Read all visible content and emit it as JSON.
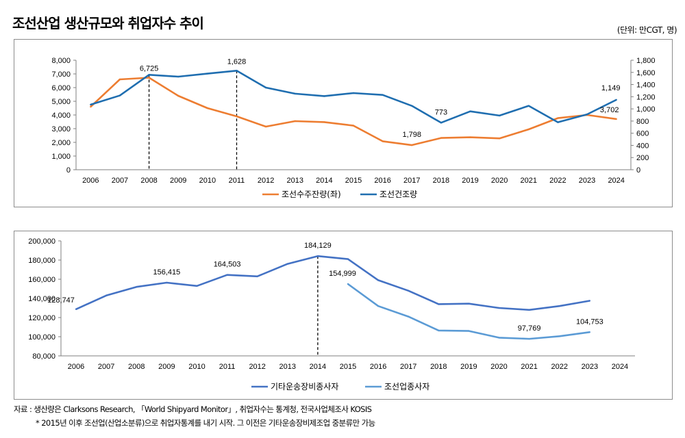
{
  "header": {
    "title": "조선산업 생산규모와 취업자수 추이",
    "unit": "(단위: 만CGT, 명)"
  },
  "footer": {
    "source": "자료 : 생산량은 Clarksons Research, 「World Shipyard Monitor」, 취업자수는 통계청, 전국사업체조사 KOSIS",
    "note": "* 2015년 이후 조선업(산업소분류)으로 취업자통계를 내기 시작. 그 이전은 기타운송장비제조업 중분류만 가능"
  },
  "chart_data": [
    {
      "type": "line",
      "categories": [
        "2006",
        "2007",
        "2008",
        "2009",
        "2010",
        "2011",
        "2012",
        "2013",
        "2014",
        "2015",
        "2016",
        "2017",
        "2018",
        "2019",
        "2020",
        "2021",
        "2022",
        "2023",
        "2024"
      ],
      "yticks": [
        "0",
        "1,000",
        "2,000",
        "3,000",
        "4,000",
        "5,000",
        "6,000",
        "7,000",
        "8,000"
      ],
      "y2ticks": [
        "0",
        "200",
        "400",
        "600",
        "800",
        "1,000",
        "1,200",
        "1,400",
        "1,600",
        "1,800"
      ],
      "ylim": [
        0,
        8000
      ],
      "y2lim": [
        0,
        1800
      ],
      "legend_position": "bottom",
      "series": [
        {
          "name": "조선수주잔량(좌)",
          "axis": "left",
          "color": "#ed7d31",
          "values": [
            4600,
            6600,
            6725,
            5400,
            4500,
            3900,
            3150,
            3550,
            3480,
            3220,
            2080,
            1798,
            2320,
            2370,
            2290,
            2950,
            3770,
            4000,
            3702
          ]
        },
        {
          "name": "조선건조량",
          "axis": "right",
          "color": "#1f6eb0",
          "values": [
            1070,
            1220,
            1560,
            1530,
            1580,
            1628,
            1350,
            1250,
            1210,
            1260,
            1230,
            1050,
            773,
            960,
            890,
            1050,
            780,
            910,
            1149
          ]
        }
      ],
      "labels": [
        {
          "text": "6,725",
          "category": "2008"
        },
        {
          "text": "1,628",
          "category": "2011"
        },
        {
          "text": "773",
          "category": "2018"
        },
        {
          "text": "1,798",
          "category": "2017"
        },
        {
          "text": "1,149",
          "category": "2024"
        },
        {
          "text": "3,702",
          "category": "2024"
        }
      ],
      "reference_lines": [
        "2008",
        "2011"
      ]
    },
    {
      "type": "line",
      "categories": [
        "2006",
        "2007",
        "2008",
        "2009",
        "2010",
        "2011",
        "2012",
        "2013",
        "2014",
        "2015",
        "2016",
        "2017",
        "2018",
        "2019",
        "2020",
        "2021",
        "2022",
        "2023",
        "2024"
      ],
      "yticks": [
        "80,000",
        "100,000",
        "120,000",
        "140,000",
        "160,000",
        "180,000",
        "200,000"
      ],
      "ylim": [
        80000,
        200000
      ],
      "legend_position": "bottom",
      "series": [
        {
          "name": "기타운송장비종사자",
          "color": "#4472c4",
          "values": [
            128747,
            143000,
            152000,
            156415,
            153000,
            164503,
            163000,
            176000,
            184129,
            181000,
            159000,
            148000,
            134000,
            134500,
            130000,
            128000,
            132000,
            137500,
            null
          ]
        },
        {
          "name": "조선업종사자",
          "color": "#5b9bd5",
          "values": [
            null,
            null,
            null,
            null,
            null,
            null,
            null,
            null,
            null,
            154999,
            132000,
            121000,
            106500,
            106000,
            99000,
            97769,
            100500,
            104753,
            null
          ]
        }
      ],
      "labels": [
        {
          "text": "128,747",
          "category": "2006"
        },
        {
          "text": "156,415",
          "category": "2009"
        },
        {
          "text": "164,503",
          "category": "2011"
        },
        {
          "text": "184,129",
          "category": "2014"
        },
        {
          "text": "154,999",
          "category": "2015"
        },
        {
          "text": "97,769",
          "category": "2021"
        },
        {
          "text": "104,753",
          "category": "2023"
        }
      ],
      "reference_lines": [
        "2014"
      ]
    }
  ]
}
